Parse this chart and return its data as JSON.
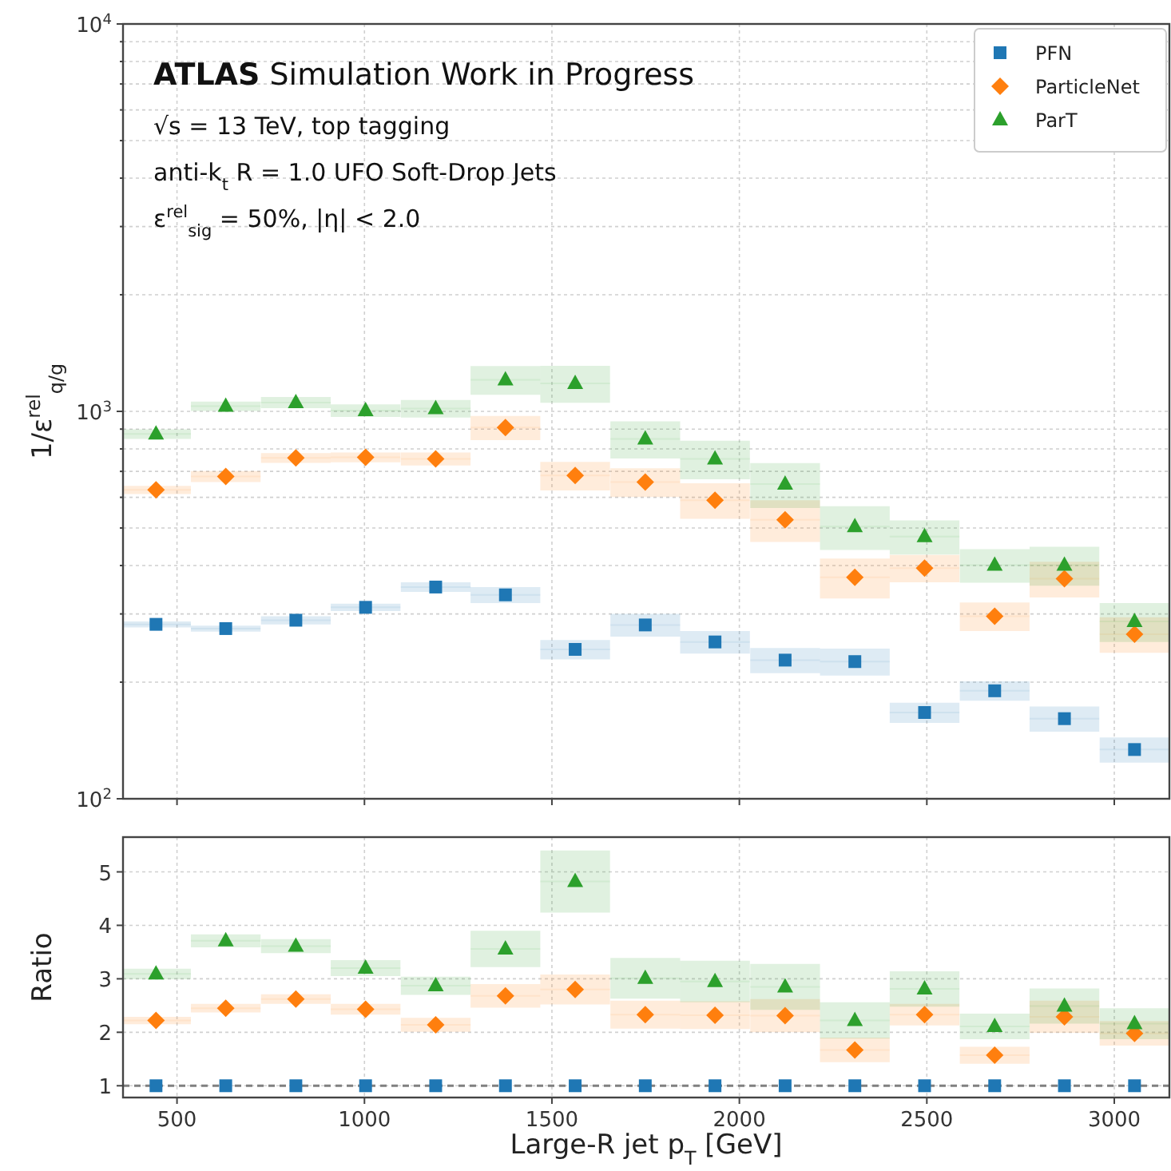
{
  "chart_data": [
    {
      "type": "scatter",
      "ylabel": "1/ε$^{rel}$$_{q/g}$",
      "log": "y",
      "grid": true,
      "legend": "top right",
      "tick_labels": "y",
      "xlim": [
        356,
        3147
      ],
      "ylim": [
        100,
        10000
      ],
      "xticks": [
        {
          "value": 500,
          "label": null
        },
        {
          "value": 1000,
          "label": null
        },
        {
          "value": 1500,
          "label": null
        },
        {
          "value": 2000,
          "label": null
        },
        {
          "value": 2500,
          "label": null
        },
        {
          "value": 3000,
          "label": null
        }
      ],
      "yticks": [
        {
          "value": 100,
          "label": "10$^{2}$"
        },
        {
          "value": 200,
          "label": null
        },
        {
          "value": 300,
          "label": null
        },
        {
          "value": 400,
          "label": null
        },
        {
          "value": 500,
          "label": null
        },
        {
          "value": 600,
          "label": null
        },
        {
          "value": 700,
          "label": null
        },
        {
          "value": 800,
          "label": null
        },
        {
          "value": 900,
          "label": null
        },
        {
          "value": 1000,
          "label": "10$^{3}$"
        },
        {
          "value": 2000,
          "label": null
        },
        {
          "value": 3000,
          "label": null
        },
        {
          "value": 4000,
          "label": null
        },
        {
          "value": 5000,
          "label": null
        },
        {
          "value": 6000,
          "label": null
        },
        {
          "value": 7000,
          "label": null
        },
        {
          "value": 8000,
          "label": null
        },
        {
          "value": 9000,
          "label": null
        },
        {
          "value": 10000,
          "label": "10$^{4}$"
        }
      ],
      "annotations": [
        "ATLAS Simulation Work in Progress",
        "√s = 13 TeV, top tagging",
        "anti-k$_{t}$ R = 1.0 UFO Soft-Drop Jets",
        "ε$^{rel}$$_{sig}$ = 50%, |η| < 2.0"
      ],
      "x": [
        444,
        630,
        817,
        1003,
        1190,
        1376,
        1562,
        1749,
        1935,
        2122,
        2308,
        2494,
        2681,
        2867,
        3054
      ],
      "series": [
        {
          "name": "PFN",
          "color": "#1f77b4",
          "marker": "square",
          "values": [
            282,
            275,
            289,
            312,
            352,
            336,
            243,
            281,
            254,
            228,
            226,
            167,
            190,
            161,
            134
          ],
          "errors": [
            5,
            5,
            7,
            7,
            10,
            16,
            14,
            19,
            17,
            17,
            18,
            10,
            11,
            12,
            10
          ],
          "xerrors": [
            93,
            93,
            93,
            93,
            93,
            93,
            93,
            93,
            93,
            93,
            93,
            93,
            93,
            93,
            93
          ]
        },
        {
          "name": "ParticleNet",
          "color": "#ff7f0e",
          "marker": "diamond",
          "values": [
            627,
            679,
            758,
            761,
            754,
            908,
            683,
            657,
            590,
            525,
            373,
            394,
            296,
            370,
            266
          ],
          "errors": [
            15,
            22,
            22,
            22,
            29,
            65,
            58,
            56,
            62,
            65,
            44,
            32,
            25,
            39,
            28
          ],
          "xerrors": [
            93,
            93,
            93,
            93,
            93,
            93,
            93,
            93,
            93,
            93,
            93,
            93,
            93,
            93,
            93
          ]
        },
        {
          "name": "ParT",
          "color": "#2ca02c",
          "marker": "triangle",
          "values": [
            874,
            1031,
            1054,
            1005,
            1017,
            1206,
            1181,
            849,
            754,
            649,
            504,
            475,
            401,
            401,
            287
          ],
          "errors": [
            25,
            29,
            35,
            38,
            53,
            103,
            129,
            93,
            86,
            86,
            65,
            48,
            40,
            46,
            33
          ],
          "xerrors": [
            93,
            93,
            93,
            93,
            93,
            93,
            93,
            93,
            93,
            93,
            93,
            93,
            93,
            93,
            93
          ]
        }
      ]
    },
    {
      "type": "scatter",
      "xlabel": "Large-R jet p$_{T}$ [GeV]",
      "ylabel": "Ratio",
      "grid": true,
      "xlim": [
        356,
        3147
      ],
      "ylim": [
        0.78,
        5.65
      ],
      "xticks": [
        500,
        1000,
        1500,
        2000,
        2500,
        3000
      ],
      "yticks": [
        1,
        2,
        3,
        4,
        5
      ],
      "ref_lines": [
        {
          "axis": "y",
          "value": 1,
          "color": "#808080",
          "line_style": "dashed"
        }
      ],
      "x": [
        444,
        630,
        817,
        1003,
        1190,
        1376,
        1562,
        1749,
        1935,
        2122,
        2308,
        2494,
        2681,
        2867,
        3054
      ],
      "series": [
        {
          "color": "#1f77b4",
          "marker": "square",
          "values": [
            1,
            1,
            1,
            1,
            1,
            1,
            1,
            1,
            1,
            1,
            1,
            1,
            1,
            1,
            1
          ]
        },
        {
          "color": "#ff7f0e",
          "marker": "diamond",
          "values": [
            2.22,
            2.45,
            2.62,
            2.43,
            2.14,
            2.68,
            2.8,
            2.33,
            2.32,
            2.31,
            1.67,
            2.33,
            1.57,
            2.29,
            1.98
          ],
          "errors": [
            0.07,
            0.08,
            0.09,
            0.1,
            0.13,
            0.22,
            0.28,
            0.26,
            0.26,
            0.31,
            0.23,
            0.2,
            0.16,
            0.3,
            0.23
          ],
          "xerrors": [
            93,
            93,
            93,
            93,
            93,
            93,
            93,
            93,
            93,
            93,
            93,
            93,
            93,
            93,
            93
          ]
        },
        {
          "color": "#2ca02c",
          "marker": "triangle",
          "values": [
            3.09,
            3.71,
            3.61,
            3.2,
            2.87,
            3.56,
            4.82,
            3.01,
            2.95,
            2.85,
            2.22,
            2.81,
            2.11,
            2.49,
            2.16
          ],
          "errors": [
            0.1,
            0.12,
            0.13,
            0.15,
            0.17,
            0.34,
            0.58,
            0.38,
            0.39,
            0.43,
            0.34,
            0.33,
            0.24,
            0.33,
            0.29
          ],
          "xerrors": [
            93,
            93,
            93,
            93,
            93,
            93,
            93,
            93,
            93,
            93,
            93,
            93,
            93,
            93,
            93
          ]
        }
      ]
    }
  ]
}
